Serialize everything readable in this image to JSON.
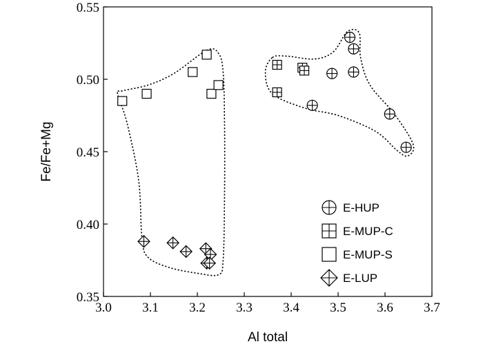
{
  "chart_data": {
    "type": "scatter",
    "title": "",
    "xlabel": "Al total",
    "ylabel": "Fe/Fe+Mg",
    "xlim": [
      3.0,
      3.7
    ],
    "ylim": [
      0.35,
      0.55
    ],
    "xticks": [
      "3.0",
      "3.1",
      "3.2",
      "3.3",
      "3.4",
      "3.5",
      "3.6",
      "3.7"
    ],
    "yticks": [
      "0.35",
      "0.40",
      "0.45",
      "0.50",
      "0.55"
    ],
    "grid": false,
    "legend_position": "bottom-right",
    "series": [
      {
        "name": "E-HUP",
        "marker": "circle-plus",
        "points": [
          [
            3.525,
            0.529
          ],
          [
            3.533,
            0.521
          ],
          [
            3.487,
            0.504
          ],
          [
            3.533,
            0.505
          ],
          [
            3.445,
            0.482
          ],
          [
            3.61,
            0.476
          ],
          [
            3.645,
            0.453
          ]
        ]
      },
      {
        "name": "E-MUP-C",
        "marker": "square-plus",
        "points": [
          [
            3.37,
            0.51
          ],
          [
            3.424,
            0.508
          ],
          [
            3.428,
            0.506
          ],
          [
            3.37,
            0.491
          ]
        ]
      },
      {
        "name": "E-MUP-S",
        "marker": "square",
        "points": [
          [
            3.04,
            0.485
          ],
          [
            3.092,
            0.49
          ],
          [
            3.19,
            0.505
          ],
          [
            3.22,
            0.517
          ],
          [
            3.23,
            0.49
          ],
          [
            3.245,
            0.496
          ]
        ]
      },
      {
        "name": "E-LUP",
        "marker": "diamond-plus",
        "points": [
          [
            3.086,
            0.388
          ],
          [
            3.148,
            0.387
          ],
          [
            3.176,
            0.381
          ],
          [
            3.218,
            0.383
          ],
          [
            3.228,
            0.379
          ],
          [
            3.22,
            0.373
          ],
          [
            3.226,
            0.373
          ]
        ]
      }
    ],
    "enclosures": [
      {
        "group": "E-MUP-S, E-LUP",
        "points": [
          [
            3.03,
            0.49
          ],
          [
            3.04,
            0.492
          ],
          [
            3.095,
            0.496
          ],
          [
            3.15,
            0.504
          ],
          [
            3.22,
            0.52
          ],
          [
            3.245,
            0.518
          ],
          [
            3.255,
            0.505
          ],
          [
            3.258,
            0.47
          ],
          [
            3.258,
            0.42
          ],
          [
            3.255,
            0.375
          ],
          [
            3.245,
            0.365
          ],
          [
            3.2,
            0.366
          ],
          [
            3.14,
            0.37
          ],
          [
            3.095,
            0.377
          ],
          [
            3.082,
            0.39
          ],
          [
            3.075,
            0.43
          ],
          [
            3.05,
            0.47
          ]
        ]
      },
      {
        "group": "E-HUP, E-MUP-C",
        "points": [
          [
            3.36,
            0.515
          ],
          [
            3.39,
            0.516
          ],
          [
            3.45,
            0.514
          ],
          [
            3.49,
            0.519
          ],
          [
            3.52,
            0.533
          ],
          [
            3.545,
            0.532
          ],
          [
            3.548,
            0.515
          ],
          [
            3.568,
            0.496
          ],
          [
            3.62,
            0.476
          ],
          [
            3.66,
            0.455
          ],
          [
            3.648,
            0.447
          ],
          [
            3.625,
            0.451
          ],
          [
            3.58,
            0.464
          ],
          [
            3.5,
            0.475
          ],
          [
            3.43,
            0.48
          ],
          [
            3.36,
            0.49
          ],
          [
            3.345,
            0.505
          ]
        ]
      }
    ]
  }
}
